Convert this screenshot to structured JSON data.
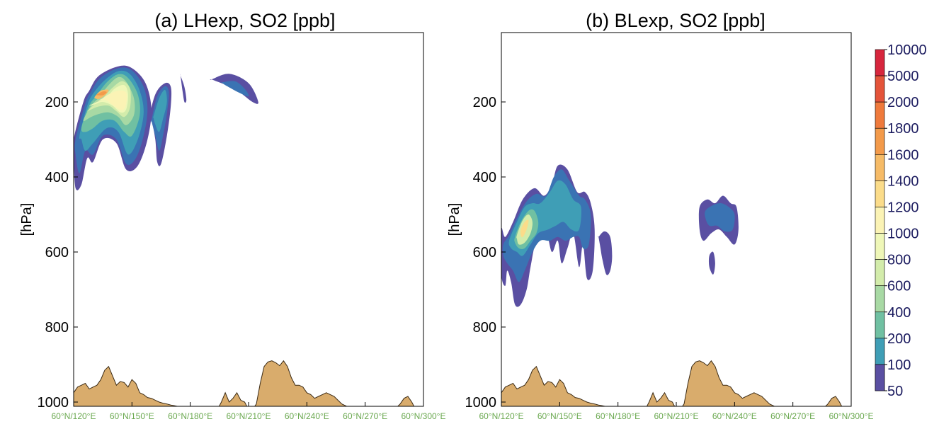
{
  "chart_data": [
    {
      "type": "contour",
      "title": "(a) LHexp, SO2 [ppb]",
      "ylabel": "[hPa]",
      "yticks": [
        200,
        400,
        600,
        800,
        1000
      ],
      "ylim": [
        1020,
        50
      ],
      "xticks": [
        "60°N/120°E",
        "60°N/150°E",
        "60°N/180°E",
        "60°N/210°E",
        "60°N/240°E",
        "60°N/270°E",
        "60°N/300°E"
      ],
      "xlim": [
        120,
        300
      ],
      "plumes": [
        {
          "level": 50,
          "lon": [
            120,
            125,
            128,
            133,
            143,
            150,
            157,
            160,
            158,
            153,
            147,
            142,
            135,
            130,
            127,
            124,
            121,
            120
          ],
          "p": [
            300,
            200,
            170,
            130,
            105,
            110,
            150,
            220,
            300,
            370,
            380,
            310,
            300,
            360,
            350,
            420,
            430,
            350
          ]
        },
        {
          "level": 100,
          "lon": [
            121,
            126,
            129,
            134,
            143,
            150,
            156,
            158,
            156,
            152,
            147,
            142,
            135,
            130,
            126,
            123,
            121
          ],
          "p": [
            300,
            205,
            172,
            135,
            110,
            116,
            160,
            220,
            290,
            350,
            365,
            300,
            290,
            340,
            330,
            390,
            340
          ]
        },
        {
          "level": 200,
          "lon": [
            123,
            127,
            130,
            136,
            143,
            149,
            154,
            156,
            153,
            148,
            143,
            137,
            130,
            126,
            124
          ],
          "p": [
            290,
            210,
            178,
            142,
            118,
            126,
            170,
            230,
            300,
            340,
            280,
            270,
            310,
            330,
            300
          ]
        },
        {
          "level": 400,
          "lon": [
            124,
            128,
            132,
            137,
            143,
            148,
            153,
            154,
            150,
            146,
            141,
            135,
            130,
            126
          ],
          "p": [
            270,
            210,
            182,
            148,
            126,
            136,
            180,
            235,
            290,
            280,
            250,
            250,
            270,
            280
          ]
        },
        {
          "level": 600,
          "lon": [
            125,
            129,
            133,
            138,
            143,
            147,
            151,
            151,
            147,
            143,
            138,
            133,
            129
          ],
          "p": [
            250,
            210,
            188,
            155,
            134,
            146,
            190,
            235,
            262,
            240,
            228,
            232,
            240
          ]
        },
        {
          "level": 800,
          "lon": [
            127,
            131,
            135,
            140,
            145,
            149,
            149,
            146,
            142,
            138,
            133,
            129
          ],
          "p": [
            225,
            205,
            190,
            162,
            145,
            165,
            215,
            240,
            225,
            210,
            212,
            220
          ]
        },
        {
          "level": 1000,
          "lon": [
            128,
            132,
            137,
            141,
            146,
            148,
            147,
            144,
            140,
            135,
            131
          ],
          "p": [
            210,
            200,
            188,
            165,
            155,
            180,
            220,
            228,
            210,
            200,
            206
          ]
        },
        {
          "level": 1200,
          "lon": [
            130,
            134,
            138,
            143,
            147,
            147,
            145,
            141,
            137,
            133
          ],
          "p": [
            200,
            193,
            180,
            170,
            175,
            205,
            222,
            212,
            196,
            196
          ]
        },
        {
          "level": 1600,
          "lon": [
            131,
            134,
            138,
            136,
            133,
            131
          ],
          "p": [
            185,
            170,
            168,
            183,
            192,
            190
          ]
        },
        {
          "level": 1800,
          "lon": [
            132,
            135,
            137,
            135,
            132
          ],
          "p": [
            180,
            172,
            174,
            182,
            182
          ]
        },
        {
          "level": 50,
          "lon": [
            158,
            162,
            167,
            170,
            170,
            168,
            165,
            163,
            162,
            160,
            158
          ],
          "p": [
            260,
            180,
            150,
            160,
            210,
            290,
            365,
            360,
            300,
            250,
            260
          ]
        },
        {
          "level": 100,
          "lon": [
            160,
            163,
            167,
            169,
            168,
            166,
            164,
            162,
            160
          ],
          "p": [
            250,
            185,
            158,
            175,
            230,
            290,
            330,
            290,
            250
          ]
        },
        {
          "level": 200,
          "lon": [
            161,
            164,
            167,
            168,
            166,
            164,
            162,
            161
          ],
          "p": [
            240,
            190,
            168,
            200,
            245,
            280,
            260,
            240
          ]
        },
        {
          "level": 50,
          "lon": [
            175,
            177,
            178,
            177,
            176,
            175
          ],
          "p": [
            130,
            160,
            195,
            200,
            170,
            130
          ]
        },
        {
          "level": 50,
          "lon": [
            191,
            200,
            210,
            215,
            212,
            203,
            195,
            191
          ],
          "p": [
            140,
            125,
            150,
            200,
            200,
            165,
            148,
            140
          ]
        },
        {
          "level": 100,
          "lon": [
            196,
            203,
            208,
            210,
            205,
            198,
            196
          ],
          "p": [
            148,
            145,
            165,
            185,
            175,
            155,
            148
          ]
        }
      ]
    },
    {
      "type": "contour",
      "title": "(b) BLexp, SO2 [ppb]",
      "ylabel": "[hPa]",
      "yticks": [
        200,
        400,
        600,
        800,
        1000
      ],
      "ylim": [
        1020,
        50
      ],
      "xticks": [
        "60°N/120°E",
        "60°N/150°E",
        "60°N/180°E",
        "60°N/210°E",
        "60°N/240°E",
        "60°N/270°E",
        "60°N/300°E"
      ],
      "xlim": [
        120,
        300
      ],
      "plumes": [
        {
          "level": 50,
          "lon": [
            120,
            122,
            126,
            131,
            137,
            142,
            146,
            149,
            154,
            159,
            163,
            166,
            168,
            167,
            164,
            162,
            160,
            157,
            154,
            151,
            149,
            146,
            143,
            138,
            135,
            133,
            130,
            127,
            125,
            123,
            122,
            120
          ],
          "p": [
            540,
            560,
            520,
            460,
            430,
            450,
            420,
            370,
            380,
            440,
            440,
            470,
            540,
            650,
            670,
            580,
            640,
            550,
            590,
            630,
            570,
            600,
            550,
            570,
            640,
            700,
            740,
            740,
            680,
            650,
            690,
            660
          ]
        },
        {
          "level": 100,
          "lon": [
            121,
            124,
            128,
            133,
            138,
            143,
            147,
            151,
            155,
            160,
            163,
            166,
            165,
            162,
            160,
            157,
            153,
            149,
            145,
            140,
            136,
            132,
            129,
            126,
            123,
            121
          ],
          "p": [
            580,
            555,
            510,
            465,
            445,
            450,
            400,
            380,
            410,
            450,
            460,
            500,
            580,
            590,
            560,
            560,
            570,
            560,
            570,
            570,
            600,
            650,
            680,
            650,
            630,
            610
          ]
        },
        {
          "level": 200,
          "lon": [
            124,
            128,
            132,
            136,
            140,
            145,
            149,
            153,
            157,
            161,
            160,
            156,
            152,
            148,
            144,
            139,
            135,
            131,
            128,
            125
          ],
          "p": [
            570,
            520,
            480,
            470,
            470,
            440,
            410,
            420,
            460,
            480,
            540,
            540,
            520,
            530,
            540,
            550,
            580,
            610,
            600,
            590
          ]
        },
        {
          "level": 400,
          "lon": [
            127,
            130,
            134,
            137,
            139,
            138,
            135,
            132,
            129,
            127
          ],
          "p": [
            560,
            520,
            490,
            490,
            520,
            550,
            570,
            590,
            590,
            575
          ]
        },
        {
          "level": 800,
          "lon": [
            128,
            131,
            134,
            136,
            135,
            132,
            129,
            128
          ],
          "p": [
            555,
            515,
            500,
            520,
            550,
            575,
            580,
            565
          ]
        },
        {
          "level": 1400,
          "lon": [
            130,
            132,
            134,
            133,
            131,
            130
          ],
          "p": [
            540,
            520,
            515,
            540,
            560,
            555
          ]
        },
        {
          "level": 50,
          "lon": [
            170,
            173,
            176,
            177,
            176,
            174,
            172,
            171,
            170
          ],
          "p": [
            560,
            545,
            560,
            610,
            650,
            660,
            620,
            590,
            560
          ]
        },
        {
          "level": 50,
          "lon": [
            222,
            226,
            230,
            234,
            238,
            241,
            242,
            240,
            236,
            232,
            228,
            224,
            222
          ],
          "p": [
            480,
            460,
            470,
            450,
            470,
            480,
            540,
            580,
            560,
            540,
            550,
            570,
            540
          ]
        },
        {
          "level": 100,
          "lon": [
            225,
            229,
            233,
            237,
            240,
            239,
            235,
            231,
            227,
            225
          ],
          "p": [
            490,
            475,
            470,
            480,
            500,
            540,
            545,
            530,
            530,
            510
          ]
        },
        {
          "level": 50,
          "lon": [
            227,
            229,
            230,
            229,
            227
          ],
          "p": [
            610,
            600,
            630,
            660,
            640
          ]
        }
      ],
      "terrain": {
        "lon": [
          120,
          122,
          124,
          126,
          128,
          130,
          132,
          134,
          136,
          138,
          140,
          142,
          144,
          146,
          148,
          150,
          152,
          154,
          156,
          158,
          160,
          162,
          164,
          166,
          168,
          170,
          172,
          174,
          176,
          178,
          180,
          182,
          184,
          186,
          188,
          190,
          192,
          194,
          196,
          198,
          200,
          202,
          204,
          206,
          208,
          210,
          212,
          214,
          216,
          218,
          220,
          222,
          224,
          226,
          228,
          230,
          232,
          234,
          236,
          238,
          240,
          242,
          244,
          246,
          248,
          250,
          252,
          254,
          256,
          258,
          260,
          262,
          264,
          266,
          268,
          270,
          272,
          274,
          276,
          278,
          280,
          282,
          284,
          286,
          288,
          290,
          292,
          294,
          296,
          298,
          300
        ],
        "p": [
          975,
          960,
          955,
          950,
          965,
          960,
          955,
          940,
          915,
          905,
          930,
          955,
          945,
          948,
          960,
          940,
          950,
          975,
          980,
          988,
          990,
          995,
          1000,
          1003,
          1005,
          1008,
          1010,
          1012,
          1014,
          1016,
          1018,
          1020,
          1020,
          1020,
          1020,
          1020,
          1020,
          1020,
          1000,
          975,
          1000,
          990,
          975,
          995,
          1000,
          1020,
          1020,
          1005,
          950,
          905,
          893,
          890,
          895,
          903,
          890,
          905,
          935,
          955,
          955,
          960,
          975,
          980,
          990,
          985,
          980,
          975,
          980,
          985,
          995,
          1005,
          1010,
          1015,
          1018,
          1020,
          1020,
          1020,
          1020,
          1020,
          1020,
          1020,
          1020,
          1020,
          1018,
          1015,
          1005,
          990,
          985,
          1000,
          1020,
          1020,
          1020
        ]
      }
    }
  ],
  "colorbar": {
    "labels": [
      "10000",
      "5000",
      "2000",
      "1800",
      "1600",
      "1400",
      "1200",
      "1000",
      "800",
      "600",
      "400",
      "200",
      "100",
      "50"
    ],
    "colors": [
      "#d7263d",
      "#e4543a",
      "#ef7a3c",
      "#f39a4a",
      "#f6bb67",
      "#fbdc8a",
      "#fbf3b5",
      "#eff7b8",
      "#d3ecab",
      "#a8d9a4",
      "#70c0a2",
      "#3f9eb6",
      "#3a73b3",
      "#5a4fa2"
    ]
  },
  "terrain_color": "#d9ac6c"
}
